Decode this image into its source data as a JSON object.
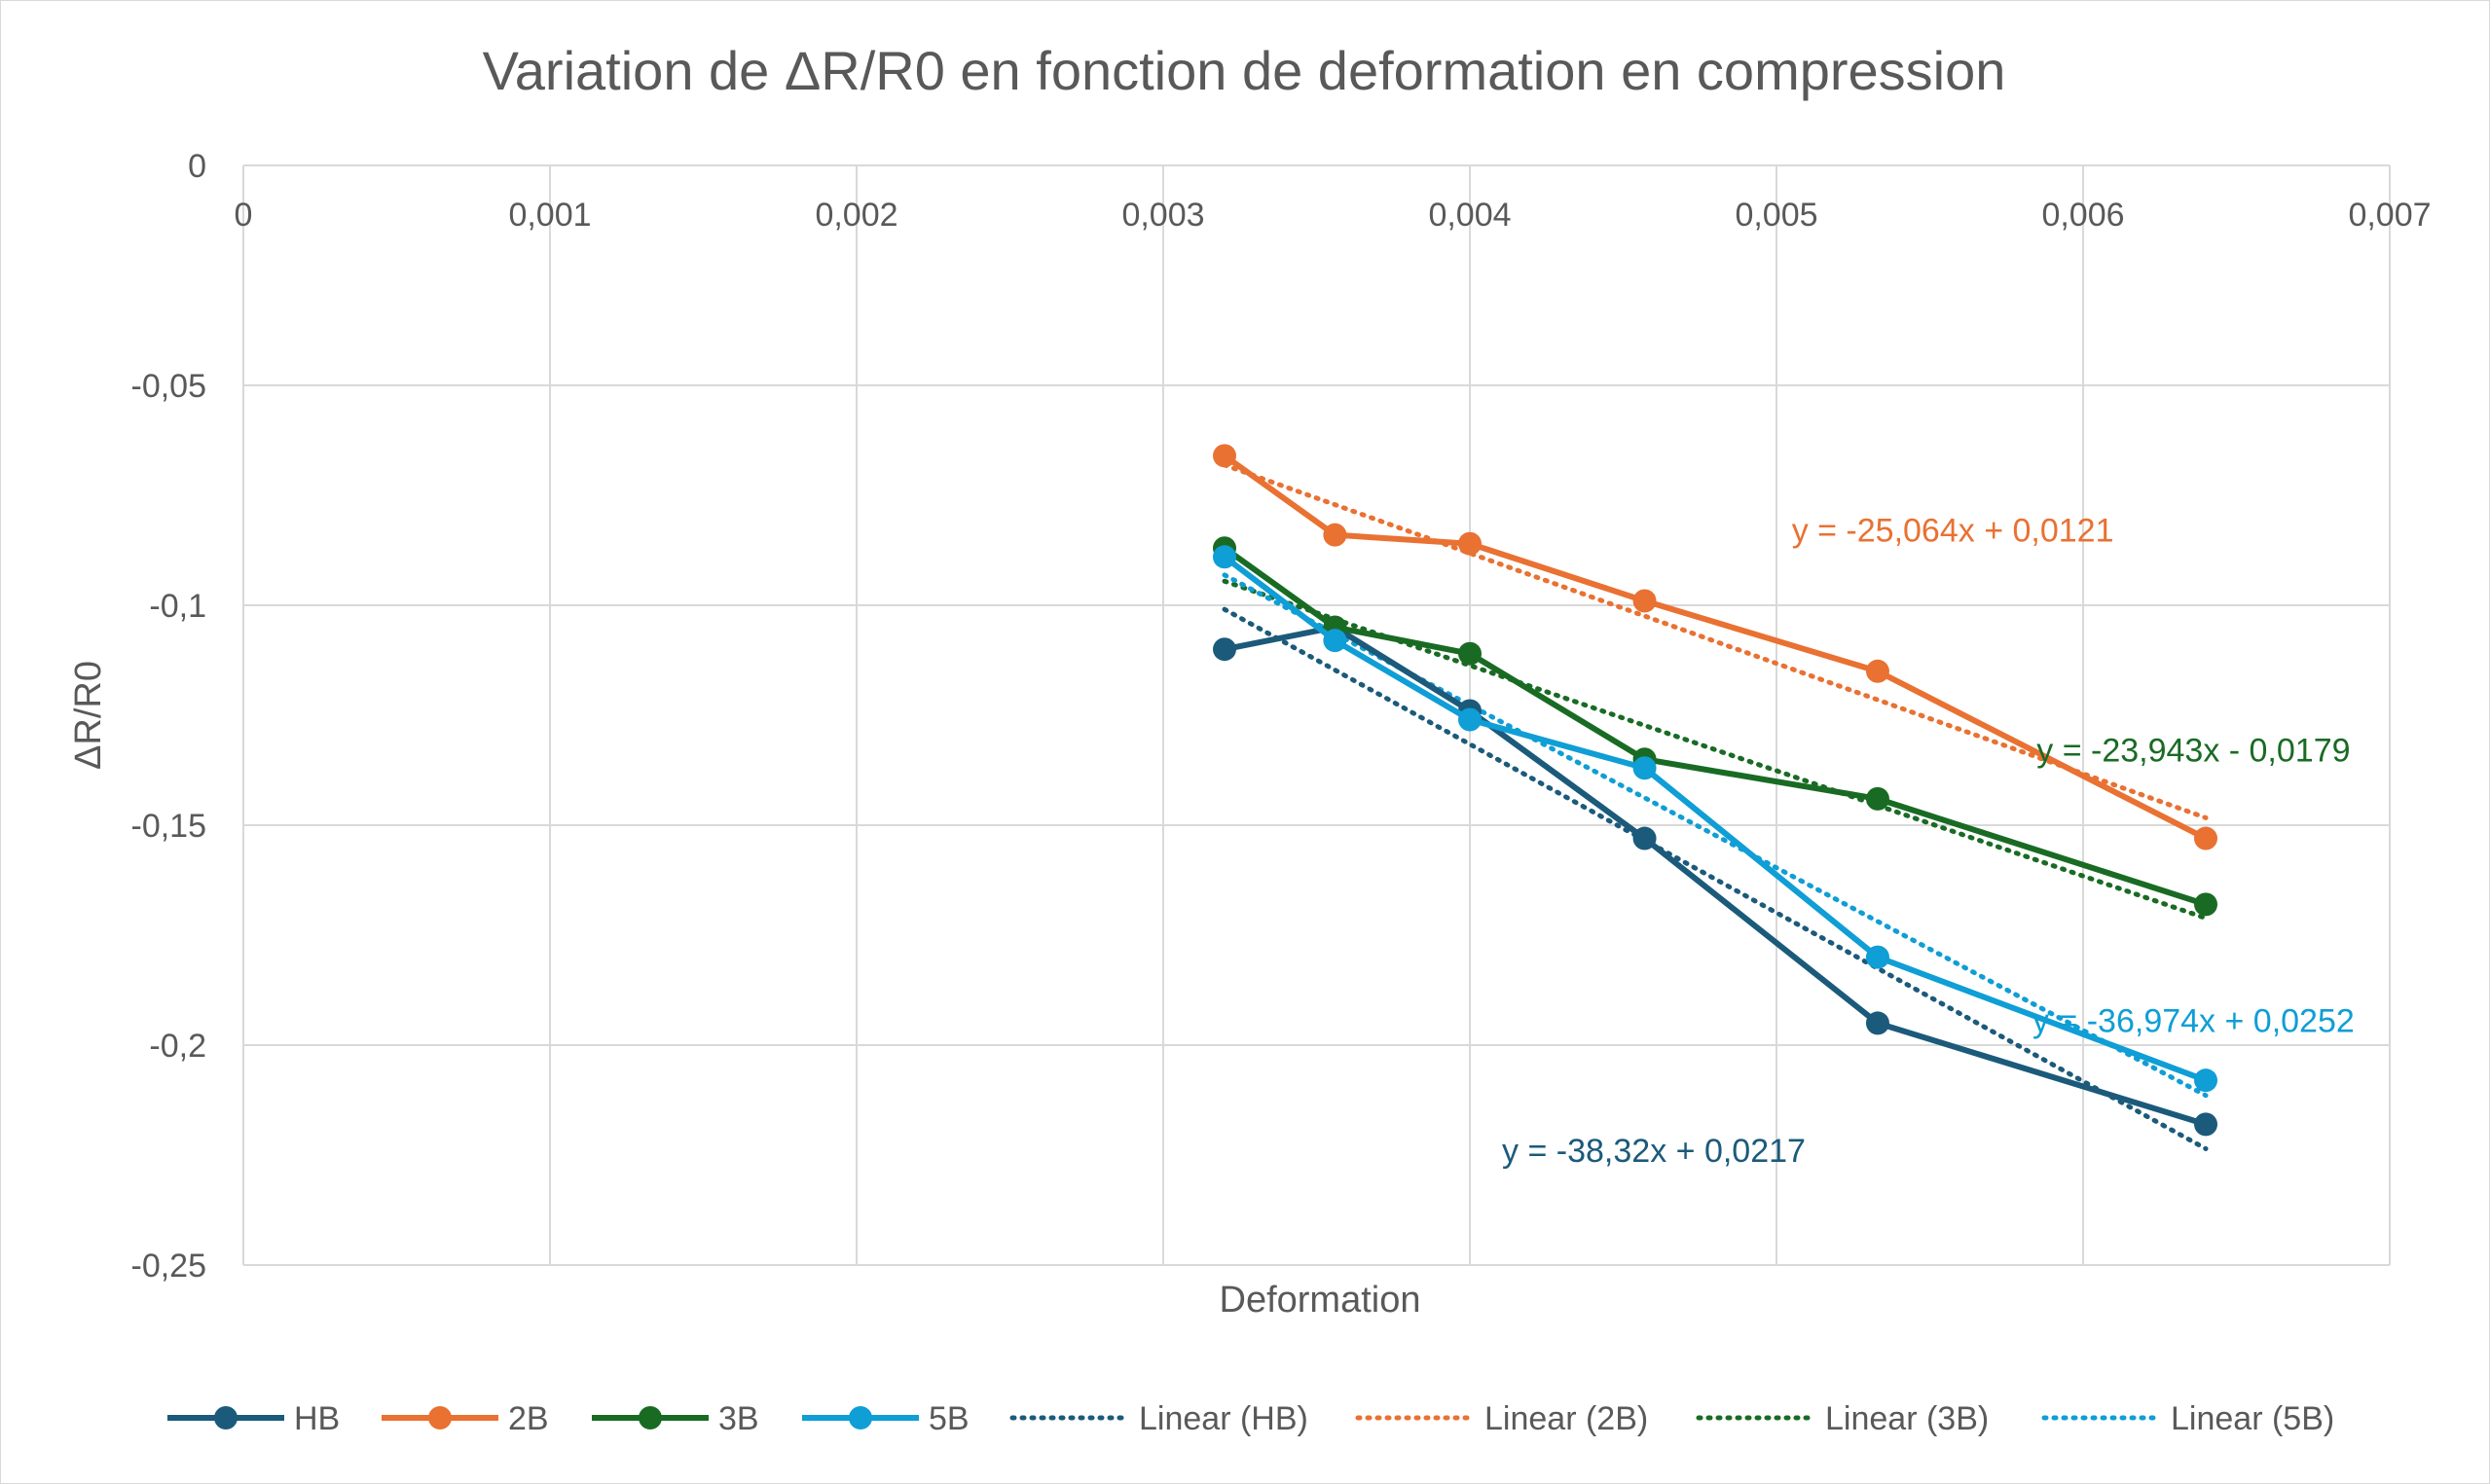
{
  "chart_data": {
    "type": "line",
    "title": "Variation de ΔR/R0 en fonction de deformation en compression",
    "xlabel": "Deformation",
    "ylabel": "ΔR/R0",
    "xlim": [
      0,
      0.007
    ],
    "ylim": [
      -0.25,
      0
    ],
    "x_ticks": [
      0,
      0.001,
      0.002,
      0.003,
      0.004,
      0.005,
      0.006,
      0.007
    ],
    "x_tick_labels": [
      "0",
      "0,001",
      "0,002",
      "0,003",
      "0,004",
      "0,005",
      "0,006",
      "0,007"
    ],
    "y_ticks": [
      0,
      -0.05,
      -0.1,
      -0.15,
      -0.2,
      -0.25
    ],
    "y_tick_labels": [
      "0",
      "-0,05",
      "-0,1",
      "-0,15",
      "-0,2",
      "-0,25"
    ],
    "grid": true,
    "legend_position": "bottom",
    "series": [
      {
        "name": "HB",
        "color": "#1b5a7a",
        "x": [
          0.0032,
          0.00356,
          0.004,
          0.00457,
          0.00533,
          0.0064
        ],
        "y": [
          -0.11,
          -0.105,
          -0.124,
          -0.153,
          -0.195,
          -0.218
        ],
        "trendline": {
          "name": "Linear (HB)",
          "slope": -38.32,
          "intercept": 0.0217,
          "equation": "y = -38,32x + 0,0217"
        }
      },
      {
        "name": "2B",
        "color": "#e97132",
        "x": [
          0.0032,
          0.00356,
          0.004,
          0.00457,
          0.00533,
          0.0064
        ],
        "y": [
          -0.066,
          -0.084,
          -0.086,
          -0.099,
          -0.115,
          -0.153
        ],
        "trendline": {
          "name": "Linear (2B)",
          "slope": -25.064,
          "intercept": 0.0121,
          "equation": "y = -25,064x + 0,0121"
        }
      },
      {
        "name": "3B",
        "color": "#196b24",
        "x": [
          0.0032,
          0.00356,
          0.004,
          0.00457,
          0.00533,
          0.0064
        ],
        "y": [
          -0.087,
          -0.105,
          -0.111,
          -0.135,
          -0.144,
          -0.168
        ],
        "trendline": {
          "name": "Linear (3B)",
          "slope": -23.943,
          "intercept": -0.0179,
          "equation": "y = -23,943x - 0,0179"
        }
      },
      {
        "name": "5B",
        "color": "#0f9ed5",
        "x": [
          0.0032,
          0.00356,
          0.004,
          0.00457,
          0.00533,
          0.0064
        ],
        "y": [
          -0.089,
          -0.108,
          -0.126,
          -0.137,
          -0.18,
          -0.208
        ],
        "trendline": {
          "name": "Linear (5B)",
          "slope": -36.974,
          "intercept": 0.0252,
          "equation": "y = -36,974x + 0,0252"
        }
      }
    ]
  }
}
